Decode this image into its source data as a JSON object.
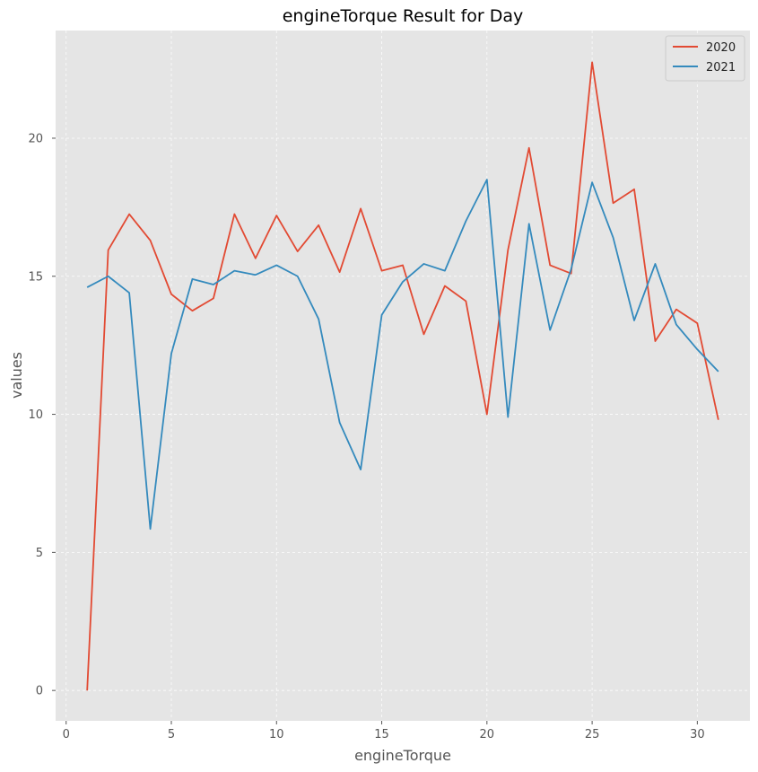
{
  "chart_data": {
    "type": "line",
    "title": "engineTorque Result for Day",
    "xlabel": "engineTorque",
    "ylabel": "values",
    "xlim": [
      -0.5,
      32.5
    ],
    "ylim": [
      -1.1,
      23.9
    ],
    "xticks": [
      0,
      5,
      10,
      15,
      20,
      25,
      30
    ],
    "yticks": [
      0,
      5,
      10,
      15,
      20
    ],
    "grid": true,
    "legend_position": "top-right",
    "x": [
      1,
      2,
      3,
      4,
      5,
      6,
      7,
      8,
      9,
      10,
      11,
      12,
      13,
      14,
      15,
      16,
      17,
      18,
      19,
      20,
      21,
      22,
      23,
      24,
      25,
      26,
      27,
      28,
      29,
      30,
      31
    ],
    "series": [
      {
        "name": "2020",
        "color": "#e24a33",
        "values": [
          0,
          15.95,
          17.25,
          16.3,
          14.35,
          13.75,
          14.2,
          17.25,
          15.65,
          17.2,
          15.9,
          16.85,
          15.15,
          17.45,
          15.2,
          15.4,
          12.9,
          14.65,
          14.1,
          10.0,
          15.95,
          19.65,
          15.4,
          15.1,
          22.75,
          17.65,
          18.15,
          12.65,
          13.8,
          13.3,
          9.8
        ]
      },
      {
        "name": "2021",
        "color": "#348abd",
        "values": [
          14.6,
          15.0,
          14.4,
          5.85,
          12.2,
          14.9,
          14.7,
          15.2,
          15.05,
          15.4,
          15.0,
          13.45,
          9.7,
          8.0,
          13.6,
          14.8,
          15.45,
          15.2,
          17.0,
          18.5,
          9.9,
          16.9,
          13.05,
          15.25,
          18.4,
          16.4,
          13.4,
          15.45,
          13.25,
          12.35,
          11.55
        ]
      }
    ]
  }
}
